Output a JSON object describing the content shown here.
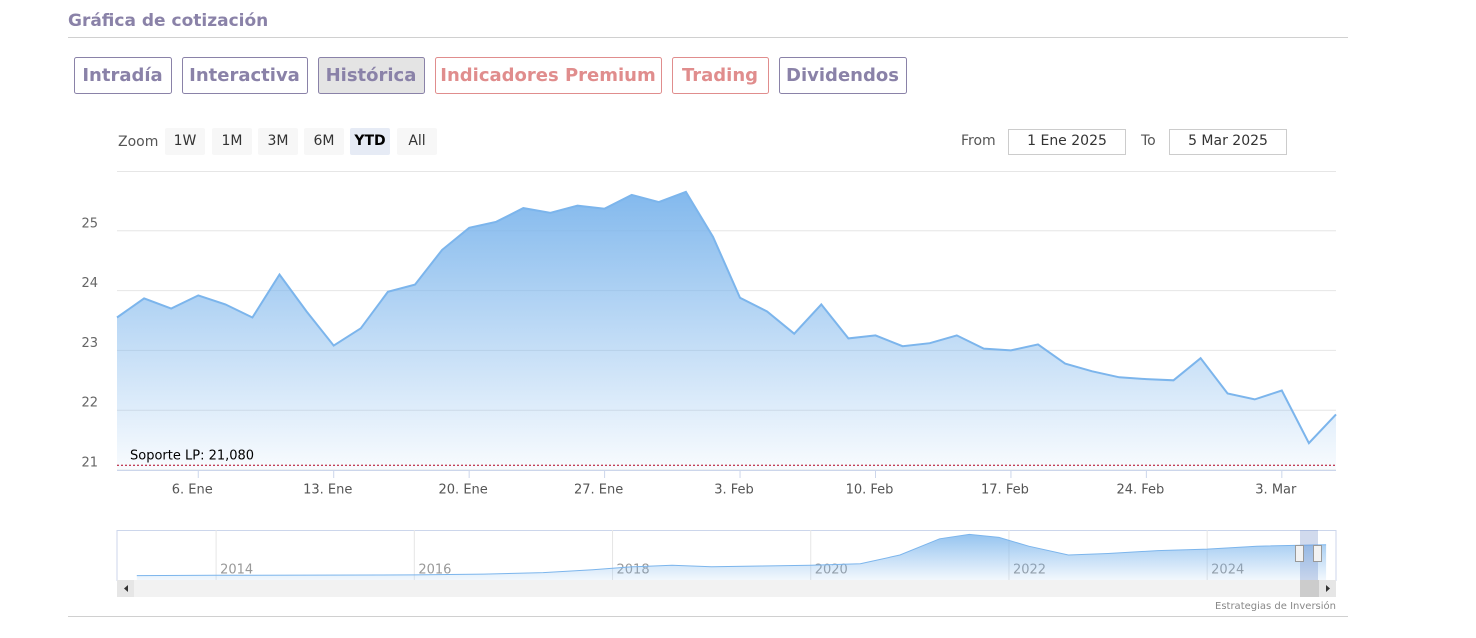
{
  "header": {
    "title": "Gráfica de cotización"
  },
  "tabs": [
    {
      "label": "Intradía",
      "color": "#8a82a8",
      "active": false
    },
    {
      "label": "Interactiva",
      "color": "#8a82a8",
      "active": false
    },
    {
      "label": "Histórica",
      "color": "#8a82a8",
      "active": true
    },
    {
      "label": "Indicadores Premium",
      "color": "#e08d8d",
      "active": false
    },
    {
      "label": "Trading",
      "color": "#e08d8d",
      "active": false
    },
    {
      "label": "Dividendos",
      "color": "#8a82a8",
      "active": false
    }
  ],
  "range_selector": {
    "zoom_label": "Zoom",
    "buttons": [
      "1W",
      "1M",
      "3M",
      "6M",
      "YTD",
      "All"
    ],
    "selected": "YTD",
    "from_label": "From",
    "from": "1 Ene 2025",
    "to_label": "To",
    "to": "5 Mar 2025"
  },
  "chart_data": {
    "type": "area",
    "categories": [
      null,
      null,
      null,
      "6. Ene",
      null,
      null,
      null,
      null,
      "13. Ene",
      null,
      null,
      null,
      null,
      "20. Ene",
      null,
      null,
      null,
      null,
      "27. Ene",
      null,
      null,
      null,
      null,
      "3. Feb",
      null,
      null,
      null,
      null,
      "10. Feb",
      null,
      null,
      null,
      null,
      "17. Feb",
      null,
      null,
      null,
      null,
      "24. Feb",
      null,
      null,
      null,
      null,
      "3. Mar",
      null,
      null
    ],
    "values": [
      23.55,
      23.87,
      23.7,
      23.92,
      23.77,
      23.55,
      24.27,
      23.65,
      23.08,
      23.37,
      23.98,
      24.1,
      24.68,
      25.05,
      25.15,
      25.38,
      25.3,
      25.42,
      25.37,
      25.6,
      25.48,
      25.65,
      24.9,
      23.88,
      23.65,
      23.28,
      23.77,
      23.2,
      23.25,
      23.07,
      23.12,
      23.25,
      23.03,
      23.0,
      23.1,
      22.78,
      22.65,
      22.55,
      22.52,
      22.5,
      22.87,
      22.28,
      22.18,
      22.33,
      21.45,
      21.93
    ],
    "color": "#7cb5ec",
    "ylim": [
      21,
      26
    ],
    "yticks": [
      21,
      22,
      23,
      24,
      25
    ],
    "grid": true,
    "annotation": {
      "label": "Soporte LP: 21,080",
      "value": 21.08,
      "color": "#b00020"
    }
  },
  "navigator": {
    "x": [
      2013.2,
      2014,
      2015,
      2016,
      2016.7,
      2017.3,
      2017.8,
      2018.2,
      2018.6,
      2019,
      2019.5,
      2020,
      2020.5,
      2020.9,
      2021.3,
      2021.6,
      2021.9,
      2022.2,
      2022.6,
      2023,
      2023.5,
      2024,
      2024.5,
      2025.2
    ],
    "values": [
      3,
      3.2,
      3.3,
      3.5,
      4,
      5,
      7,
      9,
      10,
      9,
      9.5,
      10,
      11,
      17,
      28,
      31,
      29,
      23,
      17,
      18,
      20,
      21,
      23,
      24
    ],
    "xlim": [
      2013,
      2025.3
    ],
    "xticks": [
      2014,
      2016,
      2018,
      2020,
      2022,
      2024
    ],
    "ylim": [
      0,
      34
    ]
  },
  "footer": {
    "credit": "Estrategias de Inversión"
  }
}
